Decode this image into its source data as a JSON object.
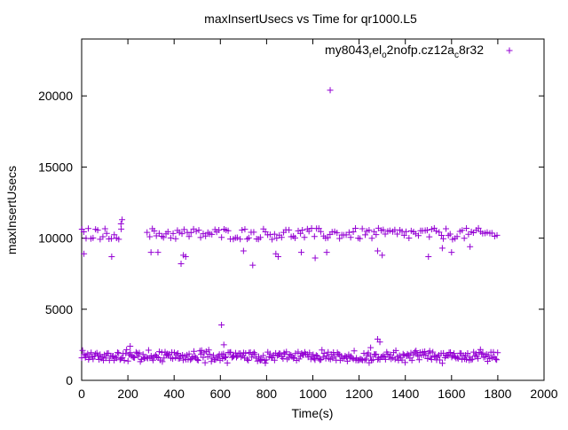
{
  "chart_data": {
    "type": "scatter",
    "title": "maxInsertUsecs vs Time for qr1000.L5",
    "xlabel": "Time(s)",
    "ylabel": "maxInsertUsecs",
    "xlim": [
      0,
      2000
    ],
    "ylim": [
      0,
      24000
    ],
    "x_ticks": [
      "0",
      "200",
      "400",
      "600",
      "800",
      "1000",
      "1200",
      "1400",
      "1600",
      "1800",
      "2000"
    ],
    "y_ticks": [
      "0",
      "5000",
      "10000",
      "15000",
      "20000"
    ],
    "grid": false,
    "legend_position": "top-right",
    "marker": "plus",
    "color": "#9400D3",
    "series": [
      {
        "name_parts": [
          "my8043",
          "r",
          "el",
          "o",
          "2nofp.cz12a",
          "c",
          "8r32"
        ],
        "lower_band": {
          "x_start": 0,
          "x_end": 1800,
          "x_step": 5,
          "y_min": 1200,
          "y_max": 2200,
          "y_typical": 1700
        },
        "upper_band": {
          "segments": [
            [
              0,
              175
            ],
            [
              285,
              1800
            ]
          ],
          "x_step": 10,
          "y_min": 9900,
          "y_max": 10700,
          "y_typical": 10300
        },
        "notable_points": [
          {
            "x": 1075,
            "y": 20400
          },
          {
            "x": 175,
            "y": 11300
          },
          {
            "x": 170,
            "y": 11000
          },
          {
            "x": 10,
            "y": 8900
          },
          {
            "x": 130,
            "y": 8700
          },
          {
            "x": 300,
            "y": 9000
          },
          {
            "x": 330,
            "y": 9000
          },
          {
            "x": 430,
            "y": 8200
          },
          {
            "x": 440,
            "y": 8800
          },
          {
            "x": 450,
            "y": 8700
          },
          {
            "x": 700,
            "y": 9100
          },
          {
            "x": 740,
            "y": 8100
          },
          {
            "x": 840,
            "y": 8900
          },
          {
            "x": 850,
            "y": 8700
          },
          {
            "x": 950,
            "y": 9000
          },
          {
            "x": 1010,
            "y": 8600
          },
          {
            "x": 1060,
            "y": 9000
          },
          {
            "x": 1280,
            "y": 9100
          },
          {
            "x": 1300,
            "y": 8800
          },
          {
            "x": 1500,
            "y": 8700
          },
          {
            "x": 1560,
            "y": 9300
          },
          {
            "x": 1600,
            "y": 9000
          },
          {
            "x": 1680,
            "y": 9400
          },
          {
            "x": 605,
            "y": 3900
          },
          {
            "x": 615,
            "y": 2500
          },
          {
            "x": 1280,
            "y": 2900
          },
          {
            "x": 1290,
            "y": 2700
          },
          {
            "x": 210,
            "y": 2400
          },
          {
            "x": 1250,
            "y": 2300
          }
        ]
      }
    ]
  }
}
